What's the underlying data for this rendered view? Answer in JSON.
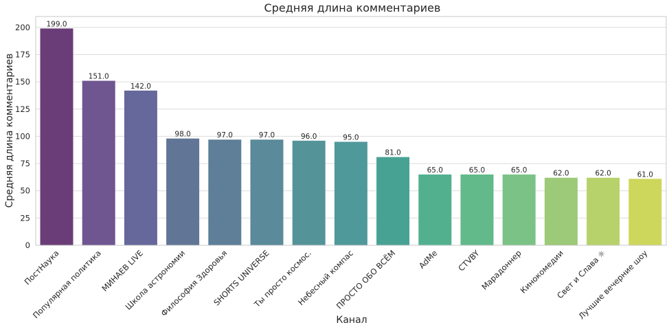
{
  "chart_data": {
    "type": "bar",
    "title": "Средняя длина комментариев",
    "xlabel": "Канал",
    "ylabel": "Средняя длина комментариев",
    "ylim": [
      0,
      210
    ],
    "yticks": [
      0,
      25,
      50,
      75,
      100,
      125,
      150,
      175,
      200
    ],
    "grid": true,
    "categories": [
      "ПостНаука",
      "Популярная политика",
      "МИНАЕВ LIVE",
      "Школа астрономии",
      "Философия Здоровья",
      "SHORTS UNIVERSE",
      "Ты просто космос.",
      "Небесный компас",
      "ПРОСТО ОБО ВСЁМ",
      "AdMe",
      "CTVBY",
      "Марадоннер",
      "Кинокомедии",
      "Свет и Слава ☼",
      "Лучшие вечерние шоу"
    ],
    "values": [
      199.0,
      151.0,
      142.0,
      98.0,
      97.0,
      97.0,
      96.0,
      95.0,
      81.0,
      65.0,
      65.0,
      65.0,
      62.0,
      62.0,
      61.0
    ],
    "value_labels": [
      "199.0",
      "151.0",
      "142.0",
      "98.0",
      "97.0",
      "97.0",
      "96.0",
      "95.0",
      "81.0",
      "65.0",
      "65.0",
      "65.0",
      "62.0",
      "62.0",
      "61.0"
    ],
    "colors": [
      "#6a3d78",
      "#6f5690",
      "#66679a",
      "#617596",
      "#5f7f98",
      "#5b8a9a",
      "#549499",
      "#50999a",
      "#48a294",
      "#52b08f",
      "#62b98a",
      "#7bc286",
      "#9cca78",
      "#b7d26a",
      "#cdd75c"
    ]
  }
}
